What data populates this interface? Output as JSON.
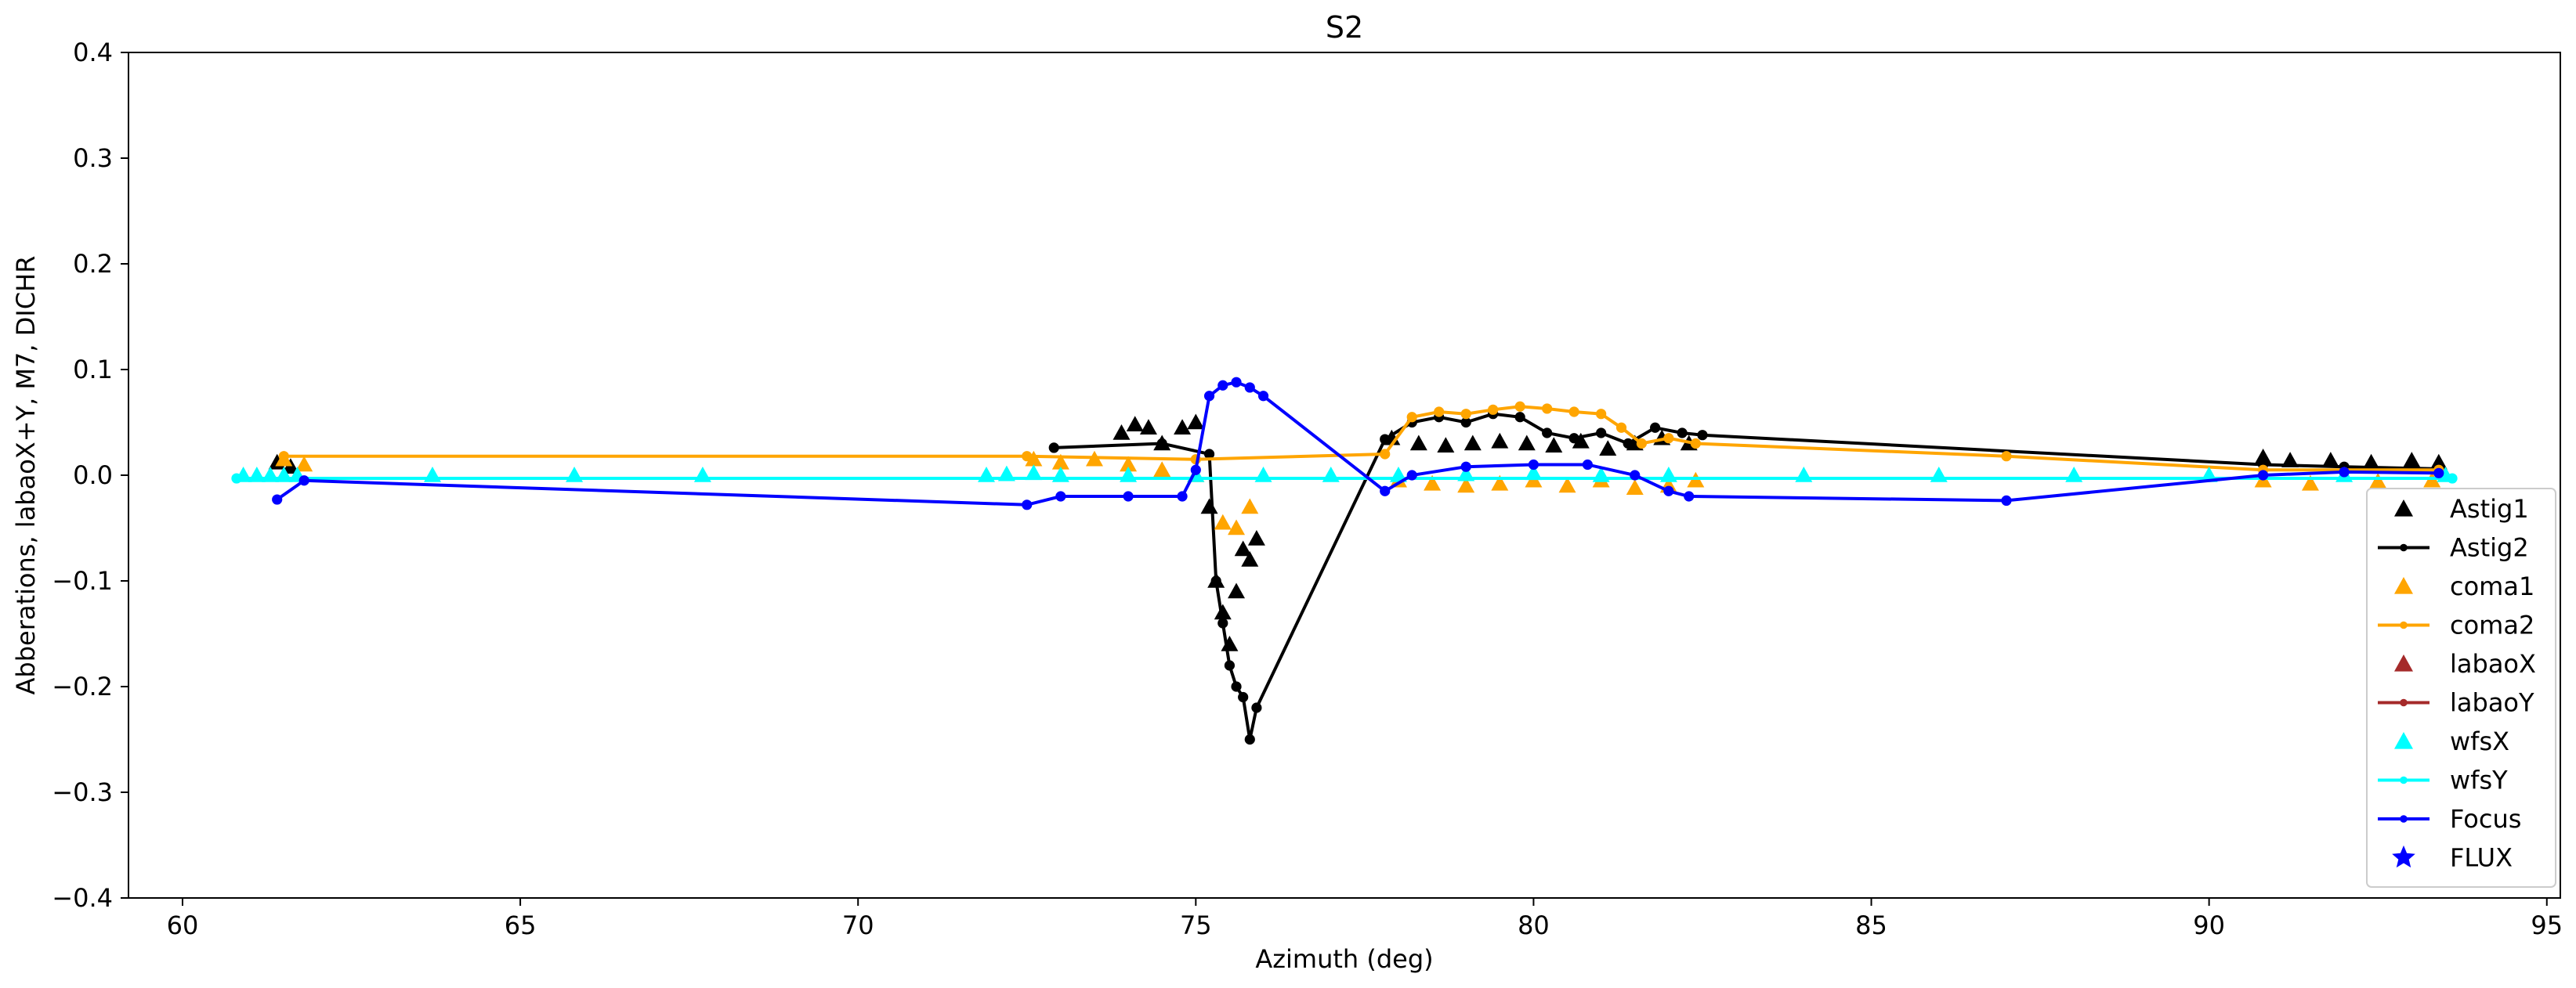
{
  "chart_data": {
    "type": "scatter",
    "title": "S2",
    "xlabel": "Azimuth (deg)",
    "ylabel": "Abberations, labaoX+Y, M7, DICHR",
    "xlim": [
      59.2,
      95.2
    ],
    "ylim": [
      -0.4,
      0.4
    ],
    "xticks": [
      60,
      65,
      70,
      75,
      80,
      85,
      90,
      95
    ],
    "xtick_labels": [
      "60",
      "65",
      "70",
      "75",
      "80",
      "85",
      "90",
      "95"
    ],
    "yticks": [
      -0.4,
      -0.3,
      -0.2,
      -0.1,
      0.0,
      0.1,
      0.2,
      0.3,
      0.4
    ],
    "ytick_labels": [
      "−0.4",
      "−0.3",
      "−0.2",
      "−0.1",
      "0.0",
      "0.1",
      "0.2",
      "0.3",
      "0.4"
    ],
    "grid": false,
    "legend_position": "lower-right",
    "series": [
      {
        "name": "Astig1",
        "color": "#000000",
        "marker": "triangle",
        "line": false,
        "x": [
          61.4,
          61.6,
          73.9,
          74.1,
          74.3,
          74.5,
          74.8,
          75.0,
          75.2,
          75.3,
          75.4,
          75.5,
          75.6,
          75.7,
          75.8,
          75.9,
          77.9,
          78.3,
          78.7,
          79.1,
          79.5,
          79.9,
          80.3,
          80.7,
          81.1,
          81.5,
          81.9,
          82.3,
          90.8,
          91.2,
          91.8,
          92.4,
          93.0,
          93.4
        ],
        "y": [
          0.012,
          0.008,
          0.04,
          0.048,
          0.045,
          0.03,
          0.045,
          0.05,
          -0.03,
          -0.1,
          -0.13,
          -0.16,
          -0.11,
          -0.07,
          -0.08,
          -0.06,
          0.035,
          0.03,
          0.028,
          0.03,
          0.032,
          0.03,
          0.028,
          0.032,
          0.025,
          0.03,
          0.035,
          0.03,
          0.017,
          0.014,
          0.014,
          0.012,
          0.014,
          0.012
        ]
      },
      {
        "name": "Astig2",
        "color": "#000000",
        "marker": "dot",
        "line": true,
        "x": [
          72.9,
          74.5,
          75.2,
          75.3,
          75.4,
          75.5,
          75.6,
          75.7,
          75.8,
          75.9,
          77.8,
          78.2,
          78.6,
          79.0,
          79.4,
          79.8,
          80.2,
          80.6,
          81.0,
          81.4,
          81.8,
          82.2,
          82.5,
          90.8,
          92.0,
          93.4
        ],
        "y": [
          0.026,
          0.03,
          0.02,
          -0.1,
          -0.14,
          -0.18,
          -0.2,
          -0.21,
          -0.25,
          -0.22,
          0.034,
          0.05,
          0.055,
          0.05,
          0.058,
          0.055,
          0.04,
          0.035,
          0.04,
          0.03,
          0.045,
          0.04,
          0.038,
          0.01,
          0.008,
          0.006
        ]
      },
      {
        "name": "coma1",
        "color": "#ffa500",
        "marker": "triangle",
        "line": false,
        "x": [
          61.5,
          61.8,
          72.6,
          73.0,
          73.5,
          74.0,
          74.5,
          75.0,
          75.4,
          75.6,
          75.8,
          78.0,
          78.5,
          79.0,
          79.5,
          80.0,
          80.5,
          81.0,
          81.5,
          82.0,
          82.4,
          90.8,
          91.5,
          92.5,
          93.3
        ],
        "y": [
          0.015,
          0.01,
          0.015,
          0.012,
          0.015,
          0.01,
          0.005,
          0.0,
          -0.045,
          -0.05,
          -0.03,
          -0.005,
          -0.008,
          -0.01,
          -0.008,
          -0.005,
          -0.01,
          -0.005,
          -0.012,
          -0.01,
          -0.005,
          -0.005,
          -0.008,
          -0.006,
          -0.005
        ]
      },
      {
        "name": "coma2",
        "color": "#ffa500",
        "marker": "dot",
        "line": true,
        "x": [
          61.5,
          72.5,
          75.0,
          77.8,
          78.2,
          78.6,
          79.0,
          79.4,
          79.8,
          80.2,
          80.6,
          81.0,
          81.3,
          81.6,
          82.0,
          82.4,
          87.0,
          90.8,
          93.4
        ],
        "y": [
          0.018,
          0.018,
          0.015,
          0.02,
          0.055,
          0.06,
          0.058,
          0.062,
          0.065,
          0.063,
          0.06,
          0.058,
          0.045,
          0.03,
          0.035,
          0.03,
          0.018,
          0.005,
          0.005
        ]
      },
      {
        "name": "labaoX",
        "color": "#a52a2a",
        "marker": "triangle",
        "line": false,
        "x": [],
        "y": []
      },
      {
        "name": "labaoY",
        "color": "#a52a2a",
        "marker": "dot",
        "line": true,
        "x": [],
        "y": []
      },
      {
        "name": "wfsX",
        "color": "#00ffff",
        "marker": "triangle",
        "line": false,
        "x": [
          60.9,
          61.1,
          61.3,
          61.5,
          61.7,
          63.7,
          65.8,
          67.7,
          71.9,
          72.2,
          72.6,
          73.0,
          74.0,
          75.0,
          76.0,
          77.0,
          78.0,
          79.0,
          80.0,
          81.0,
          82.0,
          84.0,
          86.0,
          88.0,
          90.0,
          92.0,
          93.5
        ],
        "y": [
          0.0,
          0.0,
          0.0,
          0.0,
          0.0,
          0.0,
          0.0,
          0.0,
          0.0,
          0.001,
          0.002,
          0.0,
          0.0,
          0.0,
          0.0,
          0.0,
          0.0,
          0.001,
          0.002,
          0.0,
          0.0,
          0.0,
          0.0,
          0.0,
          0.0,
          0.0,
          0.0
        ]
      },
      {
        "name": "wfsY",
        "color": "#00ffff",
        "marker": "dot",
        "line": true,
        "x": [
          60.8,
          93.6
        ],
        "y": [
          -0.003,
          -0.003
        ]
      },
      {
        "name": "Focus",
        "color": "#0000ff",
        "marker": "dot",
        "line": true,
        "x": [
          61.4,
          61.8,
          72.5,
          73.0,
          74.0,
          74.8,
          75.0,
          75.2,
          75.4,
          75.6,
          75.8,
          76.0,
          77.8,
          78.2,
          79.0,
          80.0,
          80.8,
          81.5,
          82.0,
          82.3,
          87.0,
          90.8,
          92.0,
          93.4
        ],
        "y": [
          -0.023,
          -0.005,
          -0.028,
          -0.02,
          -0.02,
          -0.02,
          0.005,
          0.075,
          0.085,
          0.088,
          0.083,
          0.075,
          -0.015,
          0.0,
          0.008,
          0.01,
          0.01,
          0.0,
          -0.015,
          -0.02,
          -0.024,
          0.0,
          0.003,
          0.002
        ]
      },
      {
        "name": "FLUX",
        "color": "#0000ff",
        "marker": "star",
        "line": false,
        "x": [],
        "y": []
      }
    ]
  }
}
